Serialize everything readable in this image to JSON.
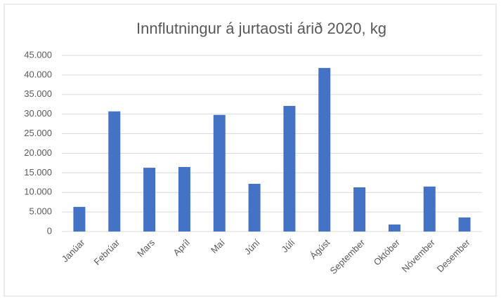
{
  "chart_data": {
    "type": "bar",
    "title": "Innflutningur á jurtaosti árið 2020, kg",
    "categories": [
      "Janúar",
      "Febrúar",
      "Mars",
      "Apríl",
      "Maí",
      "Júní",
      "Júlí",
      "Ágúst",
      "September",
      "Október",
      "Nóvember",
      "Desember"
    ],
    "values": [
      6300,
      30700,
      16300,
      16500,
      29800,
      12200,
      32100,
      41800,
      11300,
      1800,
      11500,
      3600
    ],
    "color": "#4472c4",
    "ylim": [
      0,
      45000
    ],
    "yticks": [
      0,
      {
        "value": 5000,
        "label": "5.000"
      },
      {
        "value": 10000,
        "label": "10.000"
      },
      {
        "value": 15000,
        "label": "15.000"
      },
      {
        "value": 20000,
        "label": "20.000"
      },
      {
        "value": 25000,
        "label": "25.000"
      },
      {
        "value": 30000,
        "label": "30.000"
      },
      {
        "value": 35000,
        "label": "35.000"
      },
      {
        "value": 40000,
        "label": "40.000"
      },
      {
        "value": 45000,
        "label": "45.000"
      }
    ],
    "grid": true
  }
}
